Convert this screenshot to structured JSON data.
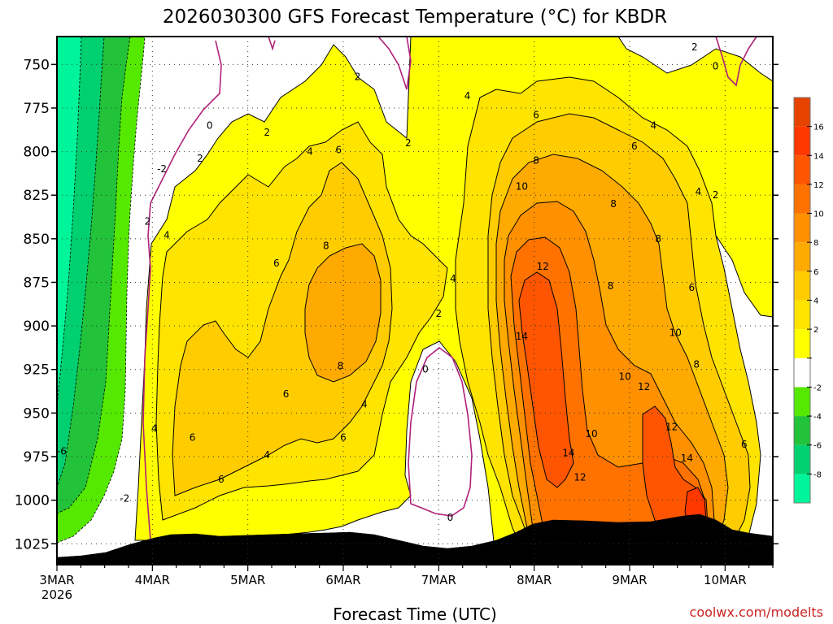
{
  "chart_data": {
    "type": "heatmap",
    "title": "2026030300 GFS Forecast Temperature (°C) for KBDR",
    "xlabel": "Forecast Time (UTC)",
    "ylabel": "",
    "credit": "coolwx.com/modelts",
    "y_ticks": [
      "750",
      "775",
      "800",
      "825",
      "850",
      "875",
      "900",
      "925",
      "950",
      "975",
      "1000",
      "1025"
    ],
    "y_values": [
      750,
      775,
      800,
      825,
      850,
      875,
      900,
      925,
      950,
      975,
      1000,
      1025
    ],
    "ylim": [
      734,
      1037
    ],
    "x_ticks": [
      {
        "label": "3MAR",
        "sub": "2026",
        "day": 0
      },
      {
        "label": "4MAR",
        "day": 1
      },
      {
        "label": "5MAR",
        "day": 2
      },
      {
        "label": "6MAR",
        "day": 3
      },
      {
        "label": "7MAR",
        "day": 4
      },
      {
        "label": "8MAR",
        "day": 5
      },
      {
        "label": "9MAR",
        "day": 6
      },
      {
        "label": "10MAR",
        "day": 7
      }
    ],
    "xlim": [
      0,
      7.5
    ],
    "colorbar": {
      "levels": [
        -10,
        -8,
        -6,
        -4,
        -2,
        0,
        2,
        4,
        6,
        8,
        10,
        12,
        14,
        16,
        18
      ],
      "labels": [
        "-8",
        "-6",
        "-4",
        "-2",
        "",
        "2",
        "4",
        "6",
        "8",
        "10",
        "12",
        "14",
        "16"
      ],
      "colors": [
        "#00f59a",
        "#00d070",
        "#22c23a",
        "#55e800",
        "#ffffff",
        "#ffff00",
        "#ffe400",
        "#ffcc00",
        "#ffaa00",
        "#ff9000",
        "#ff7200",
        "#ff5500",
        "#ff3800",
        "#e64300"
      ]
    },
    "terrain_color": "#8b5430",
    "contour_labels": [
      {
        "t": "2",
        "d": 3.15,
        "p": 757
      },
      {
        "t": "2",
        "d": 2.2,
        "p": 789
      },
      {
        "t": "0",
        "d": 1.6,
        "p": 785
      },
      {
        "t": "2",
        "d": 1.5,
        "p": 804
      },
      {
        "t": "-2",
        "d": 1.1,
        "p": 810
      },
      {
        "t": "2",
        "d": 0.95,
        "p": 840
      },
      {
        "t": "4",
        "d": 2.65,
        "p": 800
      },
      {
        "t": "6",
        "d": 2.95,
        "p": 799
      },
      {
        "t": "2",
        "d": 3.68,
        "p": 795
      },
      {
        "t": "4",
        "d": 4.3,
        "p": 768
      },
      {
        "t": "6",
        "d": 5.02,
        "p": 779
      },
      {
        "t": "8",
        "d": 5.02,
        "p": 805
      },
      {
        "t": "10",
        "d": 4.87,
        "p": 820
      },
      {
        "t": "8",
        "d": 5.83,
        "p": 830
      },
      {
        "t": "6",
        "d": 6.05,
        "p": 797
      },
      {
        "t": "4",
        "d": 6.25,
        "p": 785
      },
      {
        "t": "2",
        "d": 6.68,
        "p": 740
      },
      {
        "t": "0",
        "d": 6.9,
        "p": 751
      },
      {
        "t": "4",
        "d": 6.72,
        "p": 823
      },
      {
        "t": "2",
        "d": 6.9,
        "p": 825
      },
      {
        "t": "8",
        "d": 6.3,
        "p": 850
      },
      {
        "t": "6",
        "d": 6.65,
        "p": 878
      },
      {
        "t": "4",
        "d": 1.15,
        "p": 848
      },
      {
        "t": "6",
        "d": 2.3,
        "p": 864
      },
      {
        "t": "8",
        "d": 2.82,
        "p": 854
      },
      {
        "t": "2",
        "d": 4.0,
        "p": 893
      },
      {
        "t": "4",
        "d": 4.15,
        "p": 873
      },
      {
        "t": "12",
        "d": 5.09,
        "p": 866
      },
      {
        "t": "8",
        "d": 5.8,
        "p": 877
      },
      {
        "t": "10",
        "d": 6.48,
        "p": 904
      },
      {
        "t": "14",
        "d": 4.87,
        "p": 906
      },
      {
        "t": "8",
        "d": 6.7,
        "p": 922
      },
      {
        "t": "10",
        "d": 5.95,
        "p": 929
      },
      {
        "t": "12",
        "d": 6.15,
        "p": 935
      },
      {
        "t": "8",
        "d": 2.97,
        "p": 923
      },
      {
        "t": "4",
        "d": 3.22,
        "p": 945
      },
      {
        "t": "6",
        "d": 2.4,
        "p": 939
      },
      {
        "t": "0",
        "d": 3.86,
        "p": 925
      },
      {
        "t": "4",
        "d": 1.02,
        "p": 959
      },
      {
        "t": "6",
        "d": 1.42,
        "p": 964
      },
      {
        "t": "6",
        "d": 3.0,
        "p": 964
      },
      {
        "t": "6",
        "d": 1.72,
        "p": 988
      },
      {
        "t": "4",
        "d": 2.2,
        "p": 974
      },
      {
        "t": "-6",
        "d": 0.05,
        "p": 972
      },
      {
        "t": "-2",
        "d": 0.71,
        "p": 999
      },
      {
        "t": "0",
        "d": 4.12,
        "p": 1010
      },
      {
        "t": "10",
        "d": 5.6,
        "p": 962
      },
      {
        "t": "12",
        "d": 6.44,
        "p": 958
      },
      {
        "t": "6",
        "d": 7.2,
        "p": 968
      },
      {
        "t": "14",
        "d": 5.36,
        "p": 973
      },
      {
        "t": "14",
        "d": 6.6,
        "p": 976
      },
      {
        "t": "12",
        "d": 5.48,
        "p": 987
      }
    ]
  }
}
